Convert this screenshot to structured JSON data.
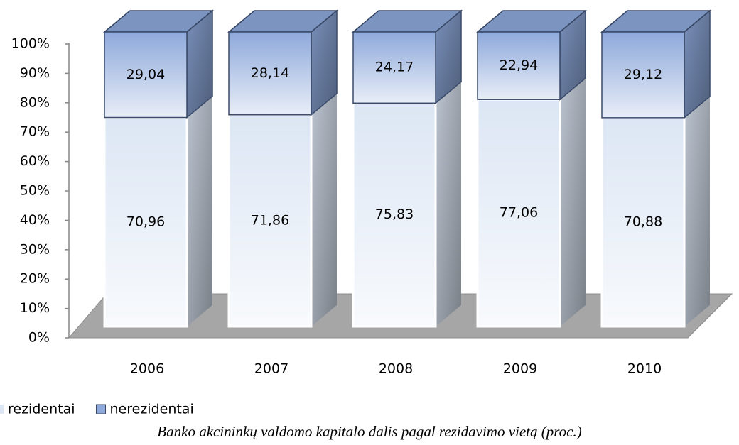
{
  "chart_data": {
    "type": "stacked_bar_3d",
    "title": "Banko akcininkų valdomo kapitalo dalis  pagal rezidavimo vietą (proc.)",
    "categories": [
      "2006",
      "2007",
      "2008",
      "2009",
      "2010"
    ],
    "series": [
      {
        "name": "rezidentai",
        "color": "#dce6f4",
        "values": [
          70.96,
          71.86,
          75.83,
          77.06,
          70.88
        ],
        "value_labels": [
          "70,96",
          "71,86",
          "75,83",
          "77,06",
          "70,88"
        ]
      },
      {
        "name": "nerezidentai",
        "color": "#8ea9db",
        "values": [
          29.04,
          28.14,
          24.17,
          22.94,
          29.12
        ],
        "value_labels": [
          "29,04",
          "28,14",
          "24,17",
          "22,94",
          "29,12"
        ]
      }
    ],
    "ylim": [
      0,
      100
    ],
    "yticks": [
      {
        "value": 0,
        "label": "0%"
      },
      {
        "value": 10,
        "label": "10%"
      },
      {
        "value": 20,
        "label": "20%"
      },
      {
        "value": 30,
        "label": "30%"
      },
      {
        "value": 40,
        "label": "40%"
      },
      {
        "value": 50,
        "label": "50%"
      },
      {
        "value": 60,
        "label": "60%"
      },
      {
        "value": 70,
        "label": "70%"
      },
      {
        "value": 80,
        "label": "80%"
      },
      {
        "value": 90,
        "label": "90%"
      },
      {
        "value": 100,
        "label": "100%"
      }
    ],
    "grid": false,
    "legend": "bottom-left"
  }
}
